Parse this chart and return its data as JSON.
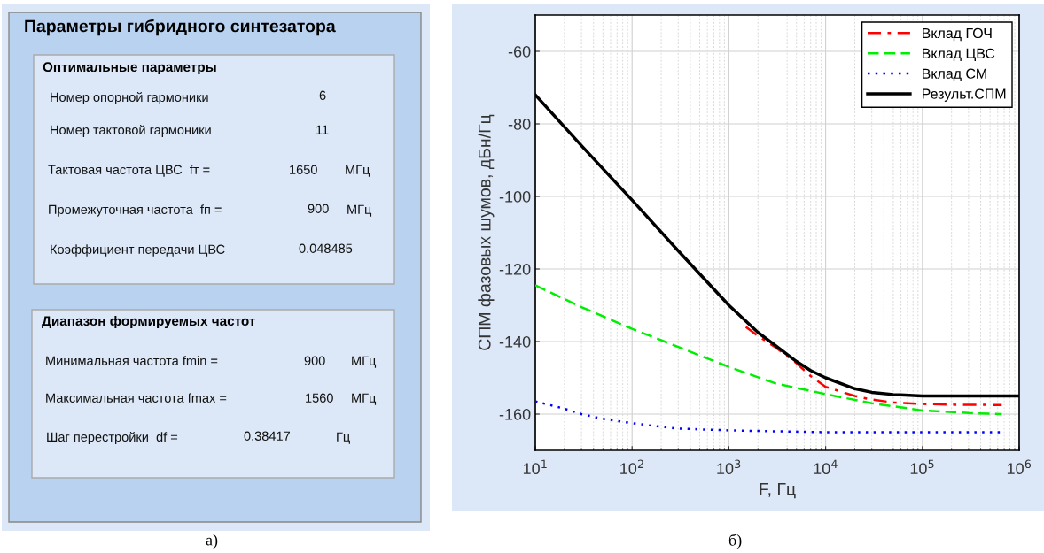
{
  "chart_data": [
    {
      "type": "other",
      "title": "Параметры гибридного синтезатора",
      "annotations": [
        "Оптимальные параметры",
        "Номер опорной гармоники",
        "6",
        "Номер тактовой гармоники",
        "11",
        "Тактовая частота ЦВС  fт =",
        "1650",
        "МГц",
        "Промежуточная частота  fп =",
        "900",
        "МГц",
        "Коэффициент передачи ЦВС",
        "0.048485",
        "Диапазон формируемых частот",
        "Минимальная частота fmin =",
        "900",
        "МГц",
        "Максимальная частота fmax =",
        "1560",
        "МГц",
        "Шаг перестройки  df =",
        "0.38417",
        "Гц",
        "а)"
      ]
    },
    {
      "type": "line",
      "xlabel": "F, Гц",
      "ylabel": "СПМ фазовых шумов, дБн/Гц",
      "log": "x",
      "xlim": [
        10,
        1000000
      ],
      "ylim": [
        -170,
        -50
      ],
      "xticks": [
        {
          "value": 10,
          "label": "10$^{1}$"
        },
        {
          "value": 100,
          "label": "10$^{2}$"
        },
        {
          "value": 1000,
          "label": "10$^{3}$"
        },
        {
          "value": 10000,
          "label": "10$^{4}$"
        },
        {
          "value": 100000,
          "label": "10$^{5}$"
        },
        {
          "value": 1000000,
          "label": "10$^{6}$"
        }
      ],
      "yticks": [
        -160,
        -140,
        -120,
        -100,
        -80,
        -60
      ],
      "grid": true,
      "legend": "top right",
      "series": [
        {
          "name": "Вклад ГОЧ",
          "color": "#ff0000",
          "line_style": "dashdot",
          "x": [
            1500,
            2000,
            3000,
            5000,
            7000,
            10000,
            20000,
            30000,
            50000,
            100000,
            200000,
            660000
          ],
          "values": [
            -136,
            -138.5,
            -141.5,
            -146,
            -149.5,
            -152.5,
            -155,
            -156,
            -156.8,
            -157.2,
            -157.4,
            -157.5
          ]
        },
        {
          "name": "Вклад ЦВС",
          "color": "#00ee00",
          "line_style": "dashed",
          "x": [
            10,
            30,
            100,
            300,
            1000,
            3000,
            10000,
            30000,
            100000,
            300000,
            660000
          ],
          "values": [
            -124.5,
            -130.5,
            -136.5,
            -141.5,
            -147,
            -151.5,
            -154.5,
            -157,
            -159,
            -159.7,
            -160
          ]
        },
        {
          "name": "Вклад СМ",
          "color": "#0000ff",
          "line_style": "dotted",
          "x": [
            10,
            20,
            30,
            50,
            100,
            200,
            300,
            1000,
            10000,
            100000,
            660000
          ],
          "values": [
            -156.5,
            -158.5,
            -160,
            -161.3,
            -162.5,
            -163.5,
            -164,
            -164.5,
            -165,
            -165,
            -165
          ]
        },
        {
          "name": "Результ.СПМ",
          "color": "#000000",
          "line_style": "solid",
          "x": [
            10,
            30,
            100,
            300,
            1000,
            2000,
            3000,
            5000,
            7000,
            10000,
            20000,
            30000,
            50000,
            100000,
            300000,
            1000000
          ],
          "values": [
            -72,
            -86,
            -101,
            -115,
            -130,
            -137.5,
            -141,
            -145.5,
            -148,
            -150,
            -153,
            -154,
            -154.6,
            -155,
            -155,
            -155
          ]
        }
      ],
      "annotations": [
        "б)"
      ]
    }
  ]
}
